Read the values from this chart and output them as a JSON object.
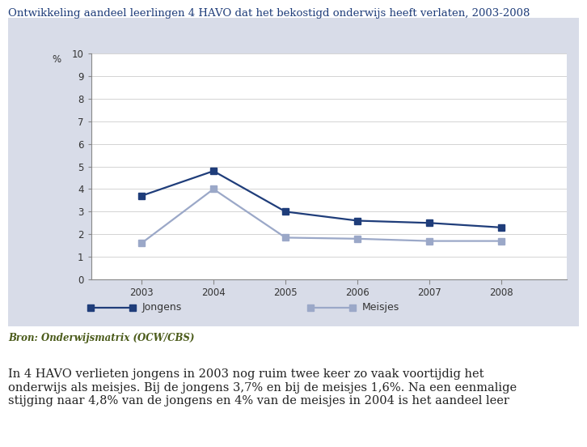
{
  "title": "Ontwikkeling aandeel leerlingen 4 HAVO dat het bekostigd onderwijs heeft verlaten, 2003-2008",
  "years": [
    2003,
    2004,
    2005,
    2006,
    2007,
    2008
  ],
  "jongens": [
    3.7,
    4.8,
    3.0,
    2.6,
    2.5,
    2.3
  ],
  "meisjes": [
    1.6,
    4.0,
    1.85,
    1.8,
    1.7,
    1.7
  ],
  "jongens_color": "#1F3D7A",
  "meisjes_color": "#9BA8C8",
  "background_outer": "#D8DCE8",
  "background_inner": "#FFFFFF",
  "ylabel": "%",
  "ylim": [
    0,
    10
  ],
  "yticks": [
    0,
    1,
    2,
    3,
    4,
    5,
    6,
    7,
    8,
    9,
    10
  ],
  "legend_jongens": "Jongens",
  "legend_meisjes": "Meisjes",
  "source_text": "Bron: Onderwijsmatrix (OCW/CBS)",
  "body_text": "In 4 HAVO verlieten jongens in 2003 nog ruim twee keer zo vaak voortijdig het\nonderwijs als meisjes. Bij de jongens 3,7% en bij de meisjes 1,6%. Na een eenmalige\nstijging naar 4,8% van de jongens en 4% van de meisjes in 2004 is het aandeel leer",
  "title_color": "#1F3D7A",
  "source_color": "#4B5B2B",
  "body_color": "#222222",
  "title_fontsize": 9.5,
  "tick_fontsize": 8.5,
  "legend_fontsize": 9,
  "source_fontsize": 8.5,
  "body_fontsize": 10.5
}
